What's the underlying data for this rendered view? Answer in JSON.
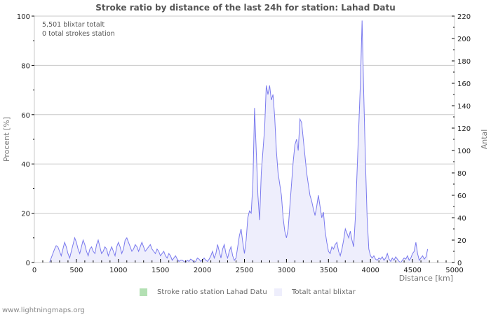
{
  "title": "Stroke ratio by distance of the last 24h for station: Lahad Datu",
  "info": {
    "line1": "5,501 blixtar totalt",
    "line2": "0 total strokes station"
  },
  "legend": [
    {
      "label": "Stroke ratio station Lahad Datu",
      "color": "#b3e0b3"
    },
    {
      "label": "Totalt antal blixtar",
      "color": "#eeeefc"
    }
  ],
  "footer": "www.lightningmaps.org",
  "chart_data": {
    "type": "area",
    "title": "Stroke ratio by distance of the last 24h for station: Lahad Datu",
    "xlabel": "Distance   [km]",
    "ylabel_left": "Procent   [%]",
    "ylabel_right": "Antal",
    "xlim": [
      0,
      5000
    ],
    "ylim_left": [
      0,
      100
    ],
    "ylim_right": [
      0,
      220
    ],
    "x_ticks": [
      0,
      500,
      1000,
      1500,
      2000,
      2500,
      3000,
      3500,
      4000,
      4500,
      5000
    ],
    "y_ticks_left": [
      0,
      20,
      40,
      60,
      80,
      100
    ],
    "y_ticks_right": [
      0,
      20,
      40,
      60,
      80,
      100,
      120,
      140,
      160,
      180,
      200,
      220
    ],
    "grid": "horizontal at left-axis ticks",
    "series": [
      {
        "name": "Stroke ratio station Lahad Datu",
        "axis": "left",
        "color": "#b3e0b3",
        "values": []
      },
      {
        "name": "Totalt antal blixtar",
        "axis": "right",
        "color": "#7a7aee",
        "fill": "#eeeefc",
        "x_step_km": 20,
        "x_start_km": 180,
        "values": [
          0,
          4,
          8,
          12,
          15,
          14,
          10,
          6,
          12,
          18,
          14,
          8,
          4,
          10,
          16,
          22,
          18,
          12,
          8,
          14,
          20,
          16,
          10,
          6,
          12,
          14,
          10,
          8,
          16,
          20,
          14,
          8,
          10,
          14,
          12,
          6,
          10,
          14,
          10,
          6,
          14,
          18,
          14,
          8,
          12,
          20,
          22,
          18,
          14,
          10,
          12,
          16,
          14,
          10,
          14,
          18,
          14,
          10,
          12,
          14,
          16,
          12,
          10,
          8,
          12,
          10,
          6,
          8,
          10,
          6,
          4,
          8,
          6,
          2,
          4,
          6,
          3,
          1,
          2,
          2,
          1,
          0,
          2,
          1,
          3,
          2,
          0,
          1,
          4,
          3,
          1,
          2,
          4,
          2,
          1,
          3,
          6,
          10,
          4,
          8,
          16,
          10,
          4,
          12,
          16,
          8,
          4,
          10,
          14,
          6,
          2,
          4,
          14,
          24,
          30,
          18,
          8,
          20,
          40,
          46,
          44,
          70,
          138,
          100,
          60,
          38,
          80,
          100,
          120,
          158,
          150,
          158,
          145,
          150,
          130,
          100,
          80,
          70,
          60,
          40,
          28,
          22,
          30,
          50,
          70,
          90,
          105,
          110,
          100,
          128,
          125,
          110,
          95,
          80,
          70,
          60,
          55,
          48,
          42,
          50,
          60,
          50,
          40,
          45,
          28,
          18,
          10,
          8,
          14,
          12,
          16,
          18,
          10,
          6,
          12,
          20,
          30,
          26,
          22,
          28,
          20,
          14,
          40,
          80,
          120,
          160,
          216,
          150,
          90,
          40,
          12,
          6,
          4,
          6,
          3,
          2,
          4,
          3,
          5,
          2,
          4,
          8,
          3,
          1,
          4,
          2,
          5,
          3,
          1,
          0,
          2,
          4,
          3,
          6,
          2,
          4,
          8,
          10,
          18,
          8,
          2,
          4,
          6,
          3,
          5,
          12
        ]
      }
    ]
  }
}
